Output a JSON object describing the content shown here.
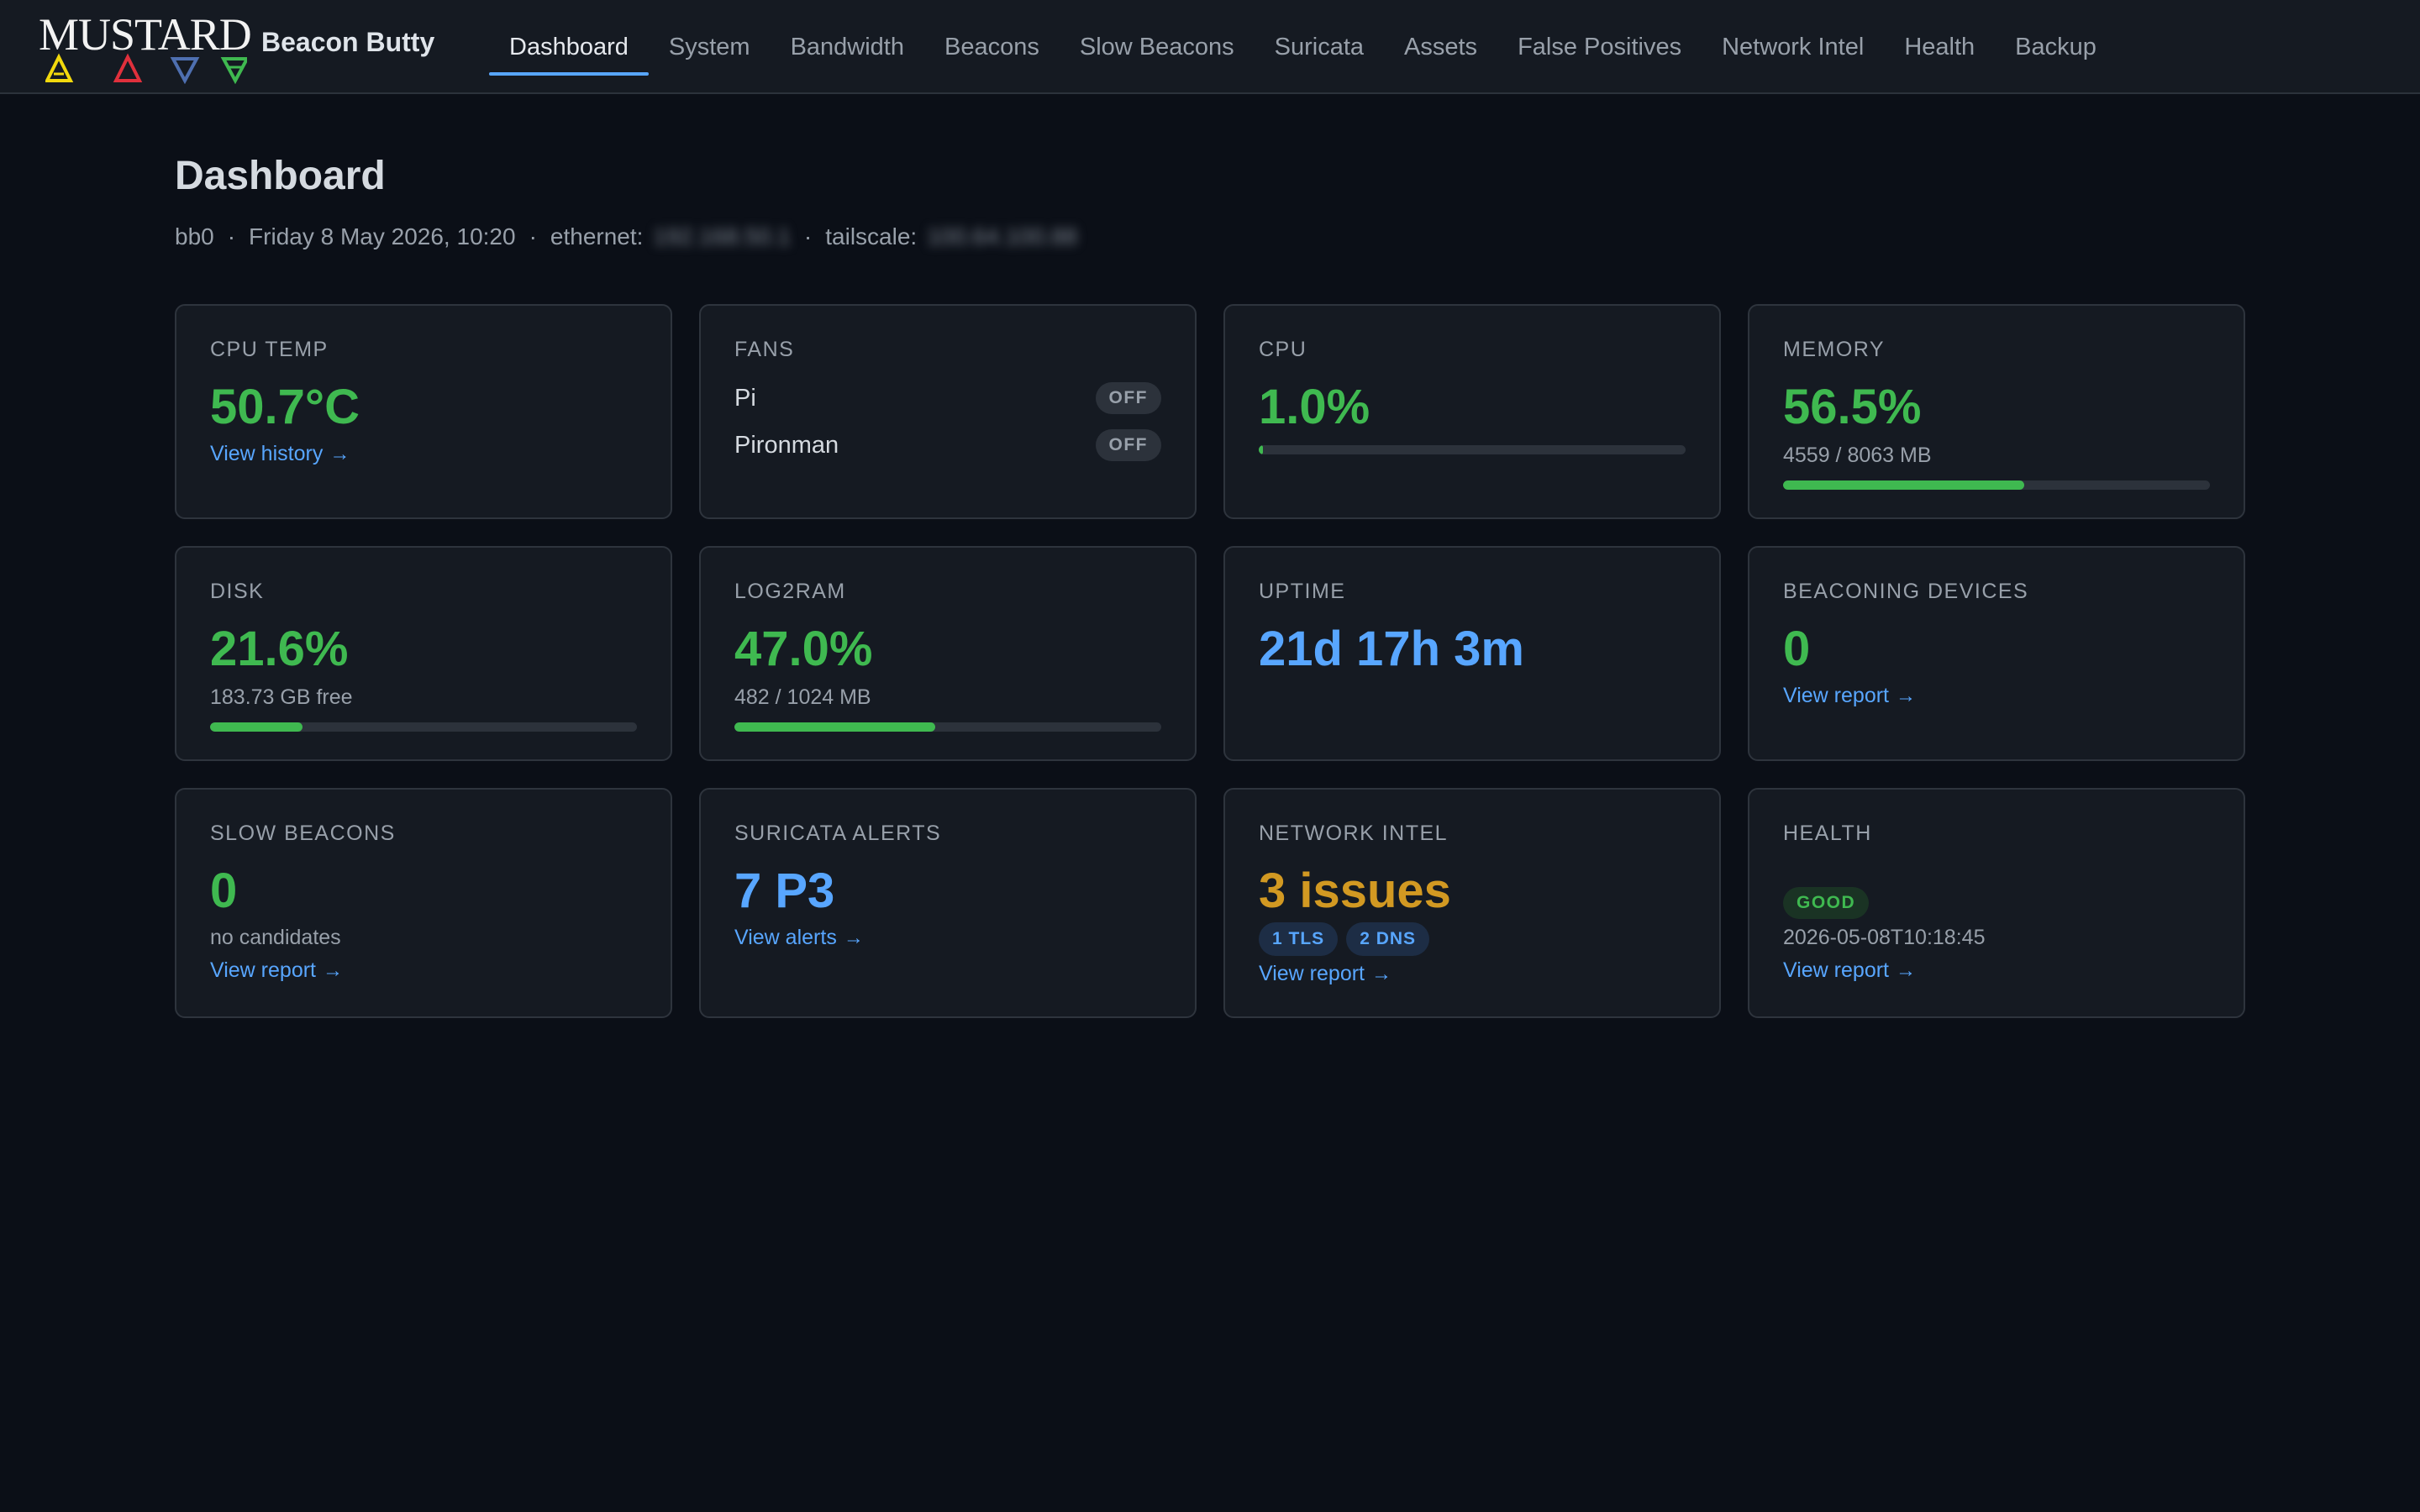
{
  "header": {
    "logo_text": "MUSTARD",
    "brand": "Beacon Butty",
    "nav": [
      {
        "label": "Dashboard",
        "active": true
      },
      {
        "label": "System"
      },
      {
        "label": "Bandwidth"
      },
      {
        "label": "Beacons"
      },
      {
        "label": "Slow Beacons"
      },
      {
        "label": "Suricata"
      },
      {
        "label": "Assets"
      },
      {
        "label": "False Positives"
      },
      {
        "label": "Network Intel"
      },
      {
        "label": "Health"
      },
      {
        "label": "Backup"
      }
    ],
    "logo_colors": [
      "#f2d90d",
      "#e0303c",
      "#4e6fb0",
      "#3fb950"
    ]
  },
  "page": {
    "title": "Dashboard",
    "host": "bb0",
    "datetime": "Friday 8 May 2026, 10:20",
    "ethernet_label": "ethernet:",
    "ethernet_value": "192.168.50.1",
    "tailscale_label": "tailscale:",
    "tailscale_value": "100.64.100.88"
  },
  "cards": {
    "cpu_temp": {
      "label": "CPU TEMP",
      "value": "50.7°C",
      "link": "View history"
    },
    "fans": {
      "label": "FANS",
      "items": [
        {
          "name": "Pi",
          "state": "OFF"
        },
        {
          "name": "Pironman",
          "state": "OFF"
        }
      ]
    },
    "cpu": {
      "label": "CPU",
      "value": "1.0%",
      "percent": 1.0
    },
    "memory": {
      "label": "MEMORY",
      "value": "56.5%",
      "detail": "4559 / 8063 MB",
      "percent": 56.5
    },
    "disk": {
      "label": "DISK",
      "value": "21.6%",
      "detail": "183.73 GB free",
      "percent": 21.6
    },
    "log2ram": {
      "label": "LOG2RAM",
      "value": "47.0%",
      "detail": "482 / 1024 MB",
      "percent": 47.0
    },
    "uptime": {
      "label": "UPTIME",
      "value": "21d 17h 3m"
    },
    "beaconing_devices": {
      "label": "BEACONING DEVICES",
      "value": "0",
      "link": "View report"
    },
    "slow_beacons": {
      "label": "SLOW BEACONS",
      "value": "0",
      "detail": "no candidates",
      "link": "View report"
    },
    "suricata_alerts": {
      "label": "SURICATA ALERTS",
      "value": "7 P3",
      "link": "View alerts"
    },
    "network_intel": {
      "label": "NETWORK INTEL",
      "value": "3 issues",
      "chips": [
        "1 TLS",
        "2 DNS"
      ],
      "link": "View report"
    },
    "health": {
      "label": "HEALTH",
      "status": "GOOD",
      "timestamp": "2026-05-08T10:18:45",
      "link": "View report"
    }
  },
  "arrow": "→"
}
